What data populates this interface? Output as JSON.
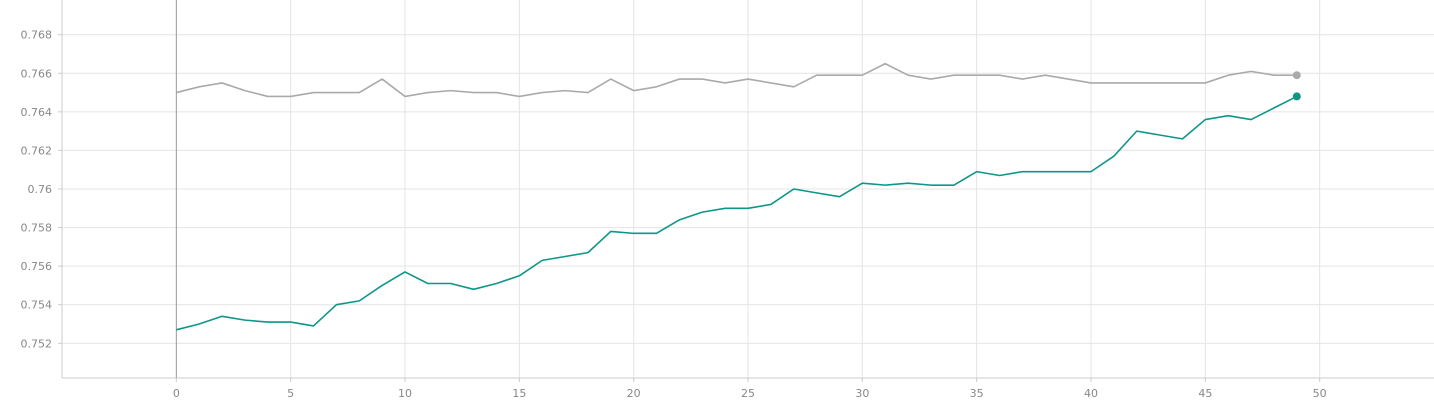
{
  "chart_data": {
    "type": "line",
    "title": "",
    "xlabel": "",
    "ylabel": "",
    "xlim": [
      -5,
      55
    ],
    "ylim": [
      0.7502,
      0.7698
    ],
    "grid": true,
    "x_ticks": [
      0,
      5,
      10,
      15,
      20,
      25,
      30,
      35,
      40,
      45,
      50
    ],
    "x_tick_labels": [
      "0",
      "5",
      "10",
      "15",
      "20",
      "25",
      "30",
      "35",
      "40",
      "45",
      "50"
    ],
    "y_ticks": [
      0.752,
      0.754,
      0.756,
      0.758,
      0.76,
      0.762,
      0.764,
      0.766,
      0.768
    ],
    "y_tick_labels": [
      "0.752",
      "0.754",
      "0.756",
      "0.758",
      "0.76",
      "0.762",
      "0.764",
      "0.766",
      "0.768"
    ],
    "series": [
      {
        "color": "#aaaaaa",
        "x": [
          0,
          1,
          2,
          3,
          4,
          5,
          6,
          7,
          8,
          9,
          10,
          11,
          12,
          13,
          14,
          15,
          16,
          17,
          18,
          19,
          20,
          21,
          22,
          23,
          24,
          25,
          26,
          27,
          28,
          29,
          30,
          31,
          32,
          33,
          34,
          35,
          36,
          37,
          38,
          39,
          40,
          41,
          42,
          43,
          44,
          45,
          46,
          47,
          48,
          49
        ],
        "values": [
          0.765,
          0.7653,
          0.7655,
          0.7651,
          0.7648,
          0.7648,
          0.765,
          0.765,
          0.765,
          0.7657,
          0.7648,
          0.765,
          0.7651,
          0.765,
          0.765,
          0.7648,
          0.765,
          0.7651,
          0.765,
          0.7657,
          0.7651,
          0.7653,
          0.7657,
          0.7657,
          0.7655,
          0.7657,
          0.7655,
          0.7653,
          0.7659,
          0.7659,
          0.7659,
          0.7665,
          0.7659,
          0.7657,
          0.7659,
          0.7659,
          0.7659,
          0.7657,
          0.7659,
          0.7657,
          0.7655,
          0.7655,
          0.7655,
          0.7655,
          0.7655,
          0.7655,
          0.7659,
          0.7661,
          0.7659,
          0.7659
        ]
      },
      {
        "color": "#0e9688",
        "x": [
          0,
          1,
          2,
          3,
          4,
          5,
          6,
          7,
          8,
          9,
          10,
          11,
          12,
          13,
          14,
          15,
          16,
          17,
          18,
          19,
          20,
          21,
          22,
          23,
          24,
          25,
          26,
          27,
          28,
          29,
          30,
          31,
          32,
          33,
          34,
          35,
          36,
          37,
          38,
          39,
          40,
          41,
          42,
          43,
          44,
          45,
          46,
          47,
          48,
          49
        ],
        "values": [
          0.7527,
          0.753,
          0.7534,
          0.7532,
          0.7531,
          0.7531,
          0.7529,
          0.754,
          0.7542,
          0.755,
          0.7557,
          0.7551,
          0.7551,
          0.7548,
          0.7551,
          0.7555,
          0.7563,
          0.7565,
          0.7567,
          0.7578,
          0.7577,
          0.7577,
          0.7584,
          0.7588,
          0.759,
          0.759,
          0.7592,
          0.76,
          0.7598,
          0.7596,
          0.7603,
          0.7602,
          0.7603,
          0.7602,
          0.7602,
          0.7609,
          0.7607,
          0.7609,
          0.7609,
          0.7609,
          0.7609,
          0.7617,
          0.763,
          0.7628,
          0.7626,
          0.7636,
          0.7638,
          0.7636,
          0.7642,
          0.7648
        ]
      }
    ]
  }
}
